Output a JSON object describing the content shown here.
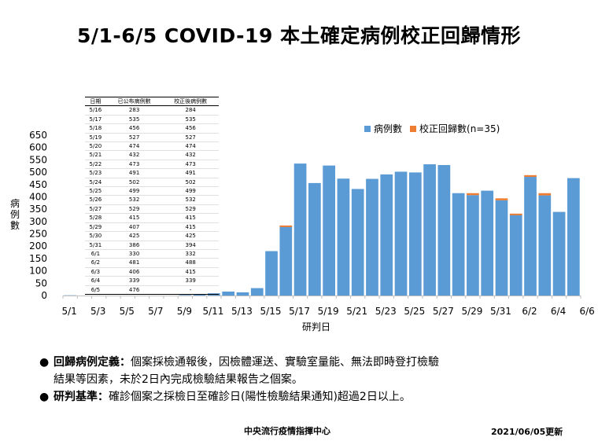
{
  "title": "5/1-6/5 COVID-19 本土確定病例校正回歸情形",
  "ylabel": "病例數",
  "legend": {
    "series1": "病例數",
    "series2": "校正回歸數(n=35)"
  },
  "colors": {
    "base": "#5b9bd5",
    "corrected": "#ed7d31"
  },
  "table": {
    "headers": [
      "日期",
      "已公布病例數",
      "校正後病例數"
    ],
    "rows": [
      [
        "5/16",
        "283",
        "284"
      ],
      [
        "5/17",
        "535",
        "535"
      ],
      [
        "5/18",
        "456",
        "456"
      ],
      [
        "5/19",
        "527",
        "527"
      ],
      [
        "5/20",
        "474",
        "474"
      ],
      [
        "5/21",
        "432",
        "432"
      ],
      [
        "5/22",
        "473",
        "473"
      ],
      [
        "5/23",
        "491",
        "491"
      ],
      [
        "5/24",
        "502",
        "502"
      ],
      [
        "5/25",
        "499",
        "499"
      ],
      [
        "5/26",
        "532",
        "532"
      ],
      [
        "5/27",
        "529",
        "529"
      ],
      [
        "5/28",
        "415",
        "415"
      ],
      [
        "5/29",
        "407",
        "415"
      ],
      [
        "5/30",
        "425",
        "425"
      ],
      [
        "5/31",
        "386",
        "394"
      ],
      [
        "6/1",
        "330",
        "332"
      ],
      [
        "6/2",
        "481",
        "488"
      ],
      [
        "6/3",
        "406",
        "415"
      ],
      [
        "6/4",
        "339",
        "339"
      ],
      [
        "6/5",
        "476",
        "-"
      ]
    ]
  },
  "notes": {
    "n1_label": "回歸病例定義：",
    "n1_text": "個案採檢通報後，因檢體運送、實驗室量能、無法即時登打檢驗",
    "n1_cont": "結果等因素，未於2日內完成檢驗結果報告之個案。",
    "n2_label": "研判基準：",
    "n2_text": "確診個案之採檢日至確診日(陽性檢驗結果通知)超過2日以上。"
  },
  "footer": {
    "org": "中央流行疫情指揮中心",
    "date": "2021/06/05更新"
  },
  "chart_data": {
    "type": "bar",
    "xlabel": "研判日",
    "ylim": [
      0,
      650
    ],
    "yticks": [
      0,
      50,
      100,
      150,
      200,
      250,
      300,
      350,
      400,
      450,
      500,
      550,
      600,
      650
    ],
    "categories": [
      "5/1",
      "5/2",
      "5/3",
      "5/4",
      "5/5",
      "5/6",
      "5/7",
      "5/8",
      "5/9",
      "5/10",
      "5/11",
      "5/12",
      "5/13",
      "5/14",
      "5/15",
      "5/16",
      "5/17",
      "5/18",
      "5/19",
      "5/20",
      "5/21",
      "5/22",
      "5/23",
      "5/24",
      "5/25",
      "5/26",
      "5/27",
      "5/28",
      "5/29",
      "5/30",
      "5/31",
      "6/1",
      "6/2",
      "6/3",
      "6/4",
      "6/5"
    ],
    "xtick_labels": [
      "5/1",
      "5/3",
      "5/5",
      "5/7",
      "5/9",
      "5/11",
      "5/13",
      "5/15",
      "5/17",
      "5/19",
      "5/21",
      "5/23",
      "5/25",
      "5/27",
      "5/29",
      "5/31",
      "6/2",
      "6/4",
      "6/6"
    ],
    "series": [
      {
        "name": "病例數",
        "values": [
          1,
          0,
          0,
          0,
          0,
          0,
          0,
          0,
          2,
          4,
          9,
          16,
          13,
          30,
          180,
          283,
          535,
          456,
          527,
          474,
          432,
          473,
          491,
          502,
          499,
          532,
          529,
          415,
          407,
          425,
          386,
          330,
          481,
          406,
          339,
          476
        ]
      },
      {
        "name": "校正回歸數(n=35)",
        "values": [
          0,
          0,
          0,
          0,
          0,
          0,
          0,
          0,
          0,
          0,
          0,
          0,
          0,
          0,
          0,
          1,
          0,
          0,
          0,
          0,
          0,
          0,
          0,
          0,
          0,
          0,
          0,
          0,
          8,
          0,
          8,
          2,
          7,
          9,
          0,
          0
        ]
      }
    ]
  }
}
